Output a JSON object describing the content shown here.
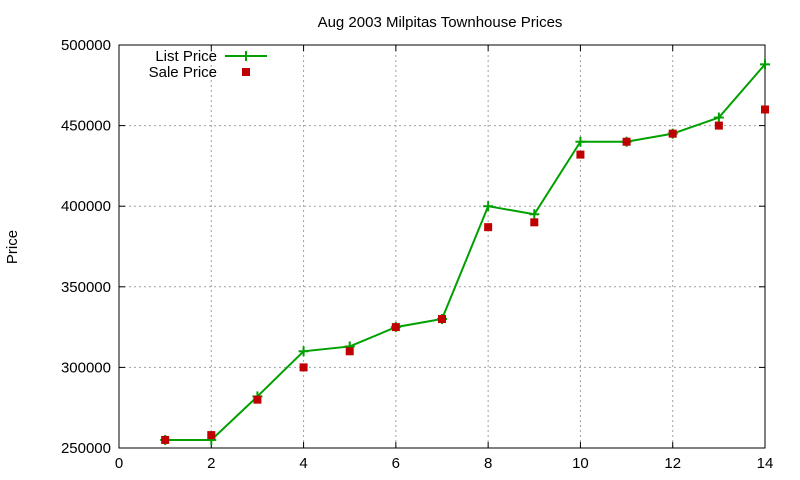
{
  "chart_data": {
    "type": "line",
    "title": "Aug 2003 Milpitas Townhouse Prices",
    "xlabel": "",
    "ylabel": "Price",
    "xlim": [
      0,
      14
    ],
    "ylim": [
      250000,
      500000
    ],
    "xticks": [
      0,
      2,
      4,
      6,
      8,
      10,
      12,
      14
    ],
    "yticks": [
      250000,
      300000,
      350000,
      400000,
      450000,
      500000
    ],
    "grid": true,
    "legend_position": "top-left",
    "series": [
      {
        "name": "List Price",
        "style": "line-plus",
        "color": "#00a000",
        "x": [
          1,
          2,
          3,
          4,
          5,
          6,
          7,
          8,
          9,
          10,
          11,
          12,
          13,
          14
        ],
        "y": [
          255000,
          255000,
          282000,
          310000,
          313000,
          325000,
          330000,
          400000,
          395000,
          440000,
          440000,
          445000,
          455000,
          488000
        ]
      },
      {
        "name": "Sale Price",
        "style": "square",
        "color": "#c00000",
        "x": [
          1,
          2,
          3,
          4,
          5,
          6,
          7,
          8,
          9,
          10,
          11,
          12,
          13,
          14
        ],
        "y": [
          255000,
          258000,
          280000,
          300000,
          310000,
          325000,
          330000,
          387000,
          390000,
          432000,
          440000,
          445000,
          450000,
          460000
        ]
      }
    ]
  }
}
